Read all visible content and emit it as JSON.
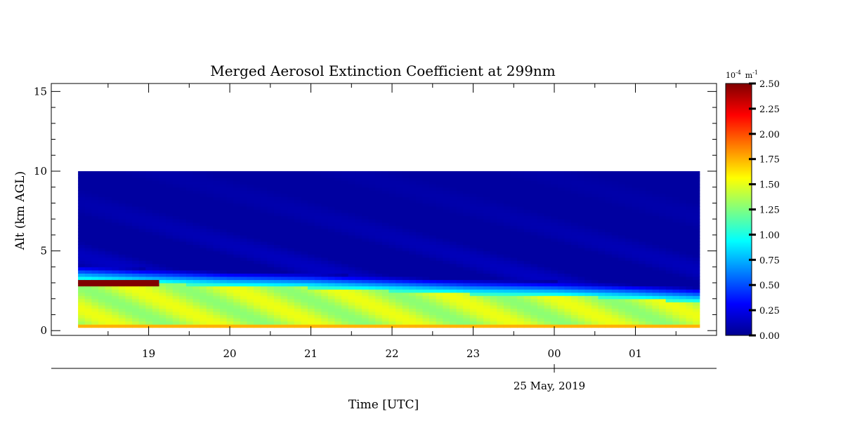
{
  "chart_data": {
    "type": "heatmap",
    "title": "Merged Aerosol Extinction Coefficient at 299nm",
    "xlabel": "Time [UTC]",
    "ylabel": "Alt (km AGL)",
    "date_label": "25 May, 2019",
    "x_tick_labels": [
      "19",
      "20",
      "21",
      "22",
      "23",
      "00",
      "01"
    ],
    "x_ticks_hours_utc": [
      19,
      20,
      21,
      22,
      23,
      24,
      25
    ],
    "x_range_hours_utc": [
      17.8,
      26.0
    ],
    "data_time_range_hours_utc": [
      18.13,
      25.79
    ],
    "y_tick_labels": [
      "0",
      "5",
      "10",
      "15"
    ],
    "y_ticks": [
      0,
      5,
      10,
      15
    ],
    "y_range_km": [
      -0.3,
      15.5
    ],
    "data_altitude_range_km": [
      0.2,
      10.0
    ],
    "colorbar": {
      "unit_label": "10",
      "unit_exp": "-4",
      "unit_suffix": "m",
      "unit_suffix_exp": "-1",
      "range": [
        0.0,
        2.5
      ],
      "tick_labels": [
        "0.00",
        "0.25",
        "0.50",
        "0.75",
        "1.00",
        "1.25",
        "1.50",
        "1.75",
        "2.00",
        "2.25",
        "2.50"
      ],
      "ticks": [
        0,
        0.25,
        0.5,
        0.75,
        1.0,
        1.25,
        1.5,
        1.75,
        2.0,
        2.25,
        2.5
      ]
    },
    "features": {
      "boundary_layer_top_km": [
        [
          18.13,
          3.6
        ],
        [
          19.0,
          3.4
        ],
        [
          20.0,
          3.2
        ],
        [
          21.0,
          3.1
        ],
        [
          22.0,
          2.9
        ],
        [
          23.0,
          2.7
        ],
        [
          24.0,
          2.6
        ],
        [
          25.0,
          2.4
        ],
        [
          25.79,
          2.2
        ]
      ],
      "boundary_layer_extinction": 1.4,
      "elevated_layer": {
        "time_range": [
          18.13,
          19.15
        ],
        "altitude_km": 3.05,
        "extinction": 2.5
      },
      "surface_layer_extinction": 1.75,
      "free_troposphere_extinction": 0.08
    }
  }
}
